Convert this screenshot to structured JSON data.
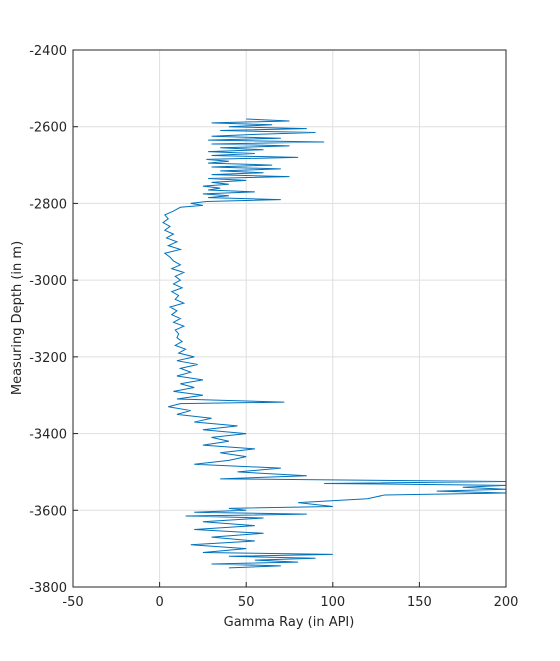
{
  "chart_data": {
    "type": "line",
    "xlabel": "Gamma Ray (in API)",
    "ylabel": "Measuring Depth (in m)",
    "xlim": [
      -50,
      200
    ],
    "xticks": [
      -50,
      0,
      50,
      100,
      150,
      200
    ],
    "ylim": [
      -3800,
      -2400
    ],
    "yticks": [
      -3800,
      -3600,
      -3400,
      -3200,
      -3000,
      -2800,
      -2600,
      -2400
    ],
    "grid": true,
    "series": [
      {
        "color": "#0072bd",
        "x": [
          50,
          75,
          30,
          65,
          40,
          85,
          35,
          90,
          55,
          30,
          70,
          28,
          95,
          30,
          75,
          35,
          60,
          28,
          55,
          30,
          80,
          27,
          40,
          28,
          65,
          30,
          70,
          35,
          60,
          30,
          75,
          28,
          50,
          30,
          40,
          25,
          35,
          28,
          55,
          25,
          40,
          28,
          70,
          27,
          18,
          25,
          12,
          8,
          3,
          5,
          2,
          6,
          3,
          8,
          4,
          10,
          5,
          12,
          3,
          6,
          8,
          12,
          7,
          14,
          9,
          12,
          8,
          13,
          7,
          11,
          9,
          14,
          6,
          10,
          7,
          12,
          8,
          14,
          9,
          11,
          10,
          13,
          9,
          15,
          11,
          20,
          10,
          22,
          12,
          18,
          10,
          25,
          12,
          20,
          8,
          25,
          10,
          72,
          12,
          5,
          18,
          10,
          30,
          20,
          45,
          25,
          50,
          30,
          40,
          25,
          55,
          35,
          50,
          40,
          20,
          70,
          45,
          85,
          35,
          200,
          95,
          200,
          175,
          200,
          160,
          200,
          130,
          120,
          80,
          100,
          40,
          50,
          20,
          85,
          15,
          60,
          25,
          55,
          20,
          60,
          30,
          55,
          18,
          50,
          25,
          100,
          40,
          90,
          55,
          80,
          30,
          70,
          40
        ],
        "values": [
          -2580,
          -2585,
          -2590,
          -2595,
          -2600,
          -2605,
          -2610,
          -2615,
          -2620,
          -2625,
          -2630,
          -2635,
          -2640,
          -2645,
          -2650,
          -2655,
          -2660,
          -2665,
          -2670,
          -2675,
          -2680,
          -2685,
          -2690,
          -2695,
          -2700,
          -2705,
          -2710,
          -2715,
          -2720,
          -2725,
          -2730,
          -2735,
          -2740,
          -2745,
          -2750,
          -2755,
          -2760,
          -2765,
          -2770,
          -2775,
          -2780,
          -2785,
          -2790,
          -2795,
          -2800,
          -2805,
          -2810,
          -2820,
          -2830,
          -2840,
          -2850,
          -2860,
          -2870,
          -2880,
          -2890,
          -2900,
          -2910,
          -2920,
          -2930,
          -2940,
          -2950,
          -2960,
          -2970,
          -2980,
          -2990,
          -3000,
          -3010,
          -3020,
          -3030,
          -3040,
          -3050,
          -3060,
          -3070,
          -3080,
          -3090,
          -3100,
          -3110,
          -3120,
          -3130,
          -3140,
          -3150,
          -3160,
          -3170,
          -3180,
          -3190,
          -3200,
          -3210,
          -3220,
          -3230,
          -3240,
          -3250,
          -3260,
          -3270,
          -3280,
          -3290,
          -3300,
          -3310,
          -3318,
          -3322,
          -3330,
          -3340,
          -3350,
          -3360,
          -3370,
          -3380,
          -3390,
          -3400,
          -3410,
          -3420,
          -3430,
          -3440,
          -3450,
          -3460,
          -3470,
          -3480,
          -3490,
          -3500,
          -3510,
          -3518,
          -3525,
          -3530,
          -3535,
          -3540,
          -3545,
          -3550,
          -3555,
          -3560,
          -3570,
          -3580,
          -3590,
          -3595,
          -3600,
          -3605,
          -3610,
          -3615,
          -3620,
          -3630,
          -3640,
          -3650,
          -3660,
          -3670,
          -3680,
          -3690,
          -3700,
          -3710,
          -3715,
          -3720,
          -3725,
          -3730,
          -3735,
          -3740,
          -3745,
          -3750
        ]
      }
    ]
  }
}
